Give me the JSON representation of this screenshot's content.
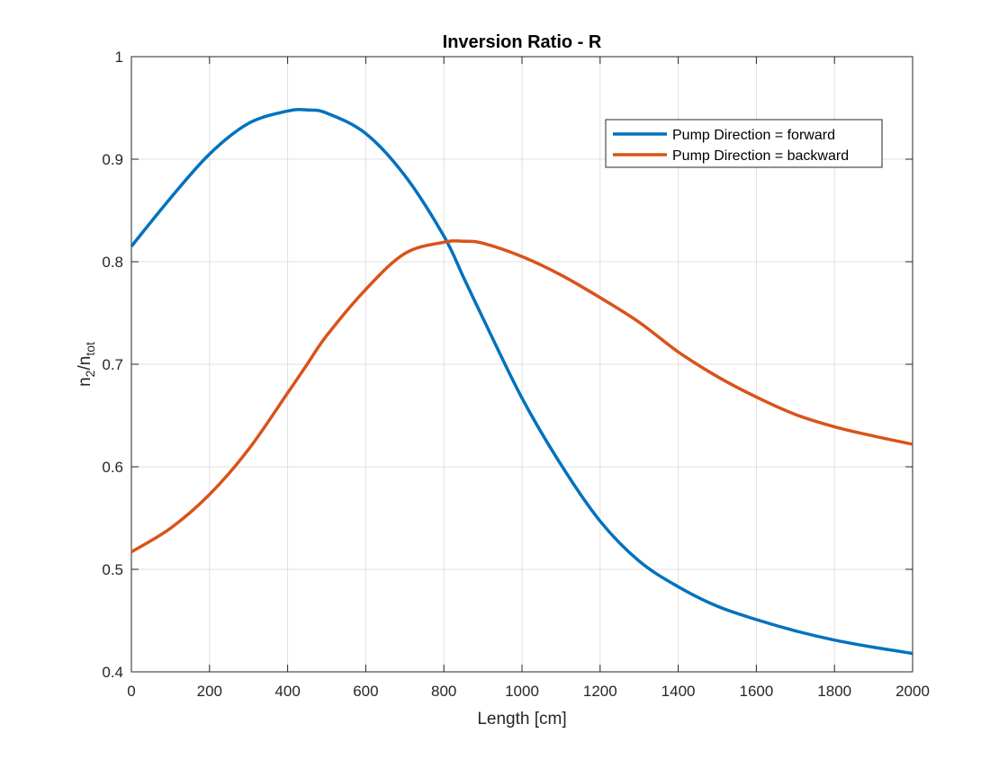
{
  "chart_data": {
    "type": "line",
    "title": "Inversion Ratio - R",
    "xlabel": "Length [cm]",
    "ylabel": {
      "base": "n",
      "sub1": "2",
      "slash": "/n",
      "sub2": "tot"
    },
    "xlim": [
      0,
      2000
    ],
    "ylim": [
      0.4,
      1.0
    ],
    "xticks": [
      0,
      200,
      400,
      600,
      800,
      1000,
      1200,
      1400,
      1600,
      1800,
      2000
    ],
    "xtick_labels": [
      "0",
      "200",
      "400",
      "600",
      "800",
      "1000",
      "1200",
      "1400",
      "1600",
      "1800",
      "2000"
    ],
    "yticks": [
      0.4,
      0.5,
      0.6,
      0.7,
      0.8,
      0.9,
      1.0
    ],
    "ytick_labels": [
      "0.4",
      "0.5",
      "0.6",
      "0.7",
      "0.8",
      "0.9",
      "1"
    ],
    "grid": true,
    "legend_position": "top-right",
    "x": [
      0,
      100,
      200,
      300,
      400,
      450,
      500,
      600,
      700,
      800,
      850,
      900,
      1000,
      1100,
      1200,
      1300,
      1400,
      1500,
      1600,
      1700,
      1800,
      1900,
      2000
    ],
    "series": [
      {
        "name": "Pump Direction = forward",
        "color": "#0072BD",
        "values": [
          0.815,
          0.862,
          0.905,
          0.935,
          0.947,
          0.948,
          0.945,
          0.925,
          0.884,
          0.825,
          0.785,
          0.745,
          0.667,
          0.602,
          0.547,
          0.508,
          0.483,
          0.464,
          0.451,
          0.44,
          0.431,
          0.424,
          0.418
        ]
      },
      {
        "name": "Pump Direction = backward",
        "color": "#D95319",
        "values": [
          0.517,
          0.54,
          0.573,
          0.617,
          0.672,
          0.7,
          0.728,
          0.773,
          0.808,
          0.819,
          0.82,
          0.818,
          0.805,
          0.787,
          0.765,
          0.741,
          0.712,
          0.688,
          0.668,
          0.651,
          0.639,
          0.63,
          0.622
        ]
      }
    ]
  }
}
